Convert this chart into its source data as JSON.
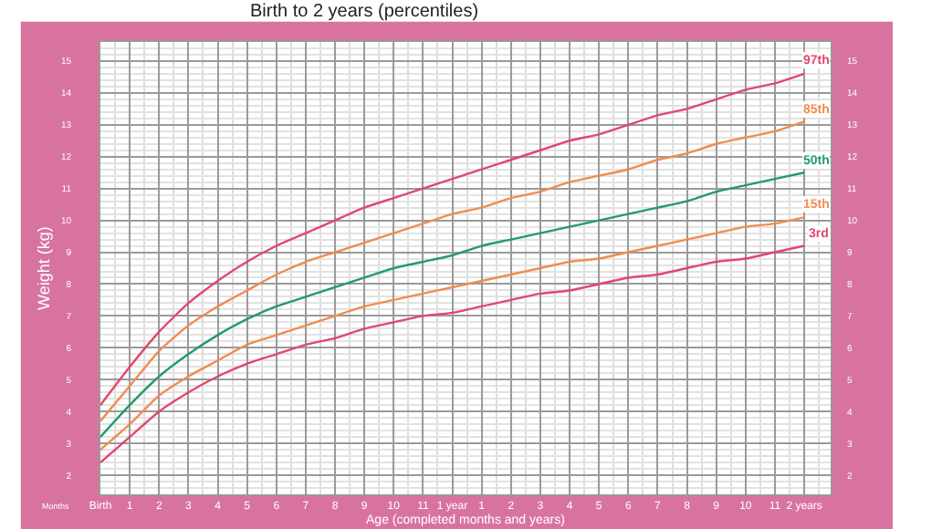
{
  "chart_data": {
    "type": "line",
    "title": "Birth to 2 years (percentiles)",
    "xlabel": "Age (completed months and years)",
    "ylabel": "Weight (kg)",
    "annotations": [
      "Months"
    ],
    "categories": [
      "Birth",
      "1",
      "2",
      "3",
      "4",
      "5",
      "6",
      "7",
      "8",
      "9",
      "10",
      "11",
      "1 year",
      "1",
      "2",
      "3",
      "4",
      "5",
      "6",
      "7",
      "8",
      "9",
      "10",
      "11",
      "2 years"
    ],
    "series": [
      {
        "name": "97th",
        "color": "#e0486e",
        "values": [
          4.2,
          5.4,
          6.5,
          7.4,
          8.1,
          8.7,
          9.2,
          9.6,
          10.0,
          10.4,
          10.7,
          11.0,
          11.3,
          11.6,
          11.9,
          12.2,
          12.5,
          12.7,
          13.0,
          13.3,
          13.5,
          13.8,
          14.1,
          14.3,
          14.6
        ]
      },
      {
        "name": "85th",
        "color": "#f08c50",
        "values": [
          3.7,
          4.8,
          5.9,
          6.7,
          7.3,
          7.8,
          8.3,
          8.7,
          9.0,
          9.3,
          9.6,
          9.9,
          10.2,
          10.4,
          10.7,
          10.9,
          11.2,
          11.4,
          11.6,
          11.9,
          12.1,
          12.4,
          12.6,
          12.8,
          13.1
        ]
      },
      {
        "name": "50th",
        "color": "#239a6e",
        "values": [
          3.2,
          4.2,
          5.1,
          5.8,
          6.4,
          6.9,
          7.3,
          7.6,
          7.9,
          8.2,
          8.5,
          8.7,
          8.9,
          9.2,
          9.4,
          9.6,
          9.8,
          10.0,
          10.2,
          10.4,
          10.6,
          10.9,
          11.1,
          11.3,
          11.5
        ]
      },
      {
        "name": "15th",
        "color": "#f08c50",
        "values": [
          2.8,
          3.6,
          4.5,
          5.1,
          5.6,
          6.1,
          6.4,
          6.7,
          7.0,
          7.3,
          7.5,
          7.7,
          7.9,
          8.1,
          8.3,
          8.5,
          8.7,
          8.8,
          9.0,
          9.2,
          9.4,
          9.6,
          9.8,
          9.9,
          10.1
        ]
      },
      {
        "name": "3rd",
        "color": "#e0486e",
        "values": [
          2.4,
          3.2,
          4.0,
          4.6,
          5.1,
          5.5,
          5.8,
          6.1,
          6.3,
          6.6,
          6.8,
          7.0,
          7.1,
          7.3,
          7.5,
          7.7,
          7.8,
          8.0,
          8.2,
          8.3,
          8.5,
          8.7,
          8.8,
          9.0,
          9.2
        ]
      }
    ],
    "ylim": [
      1.4,
      15.6
    ],
    "yticks": [
      2,
      3,
      4,
      5,
      6,
      7,
      8,
      9,
      10,
      11,
      12,
      13,
      14,
      15
    ],
    "y2lim": [
      1.4,
      15.6
    ],
    "y2ticks": [
      2,
      3,
      4,
      5,
      6,
      7,
      8,
      9,
      10,
      11,
      12,
      13,
      14,
      15
    ],
    "grid": true,
    "legend": false,
    "marker": "none",
    "line_style": "solid"
  }
}
